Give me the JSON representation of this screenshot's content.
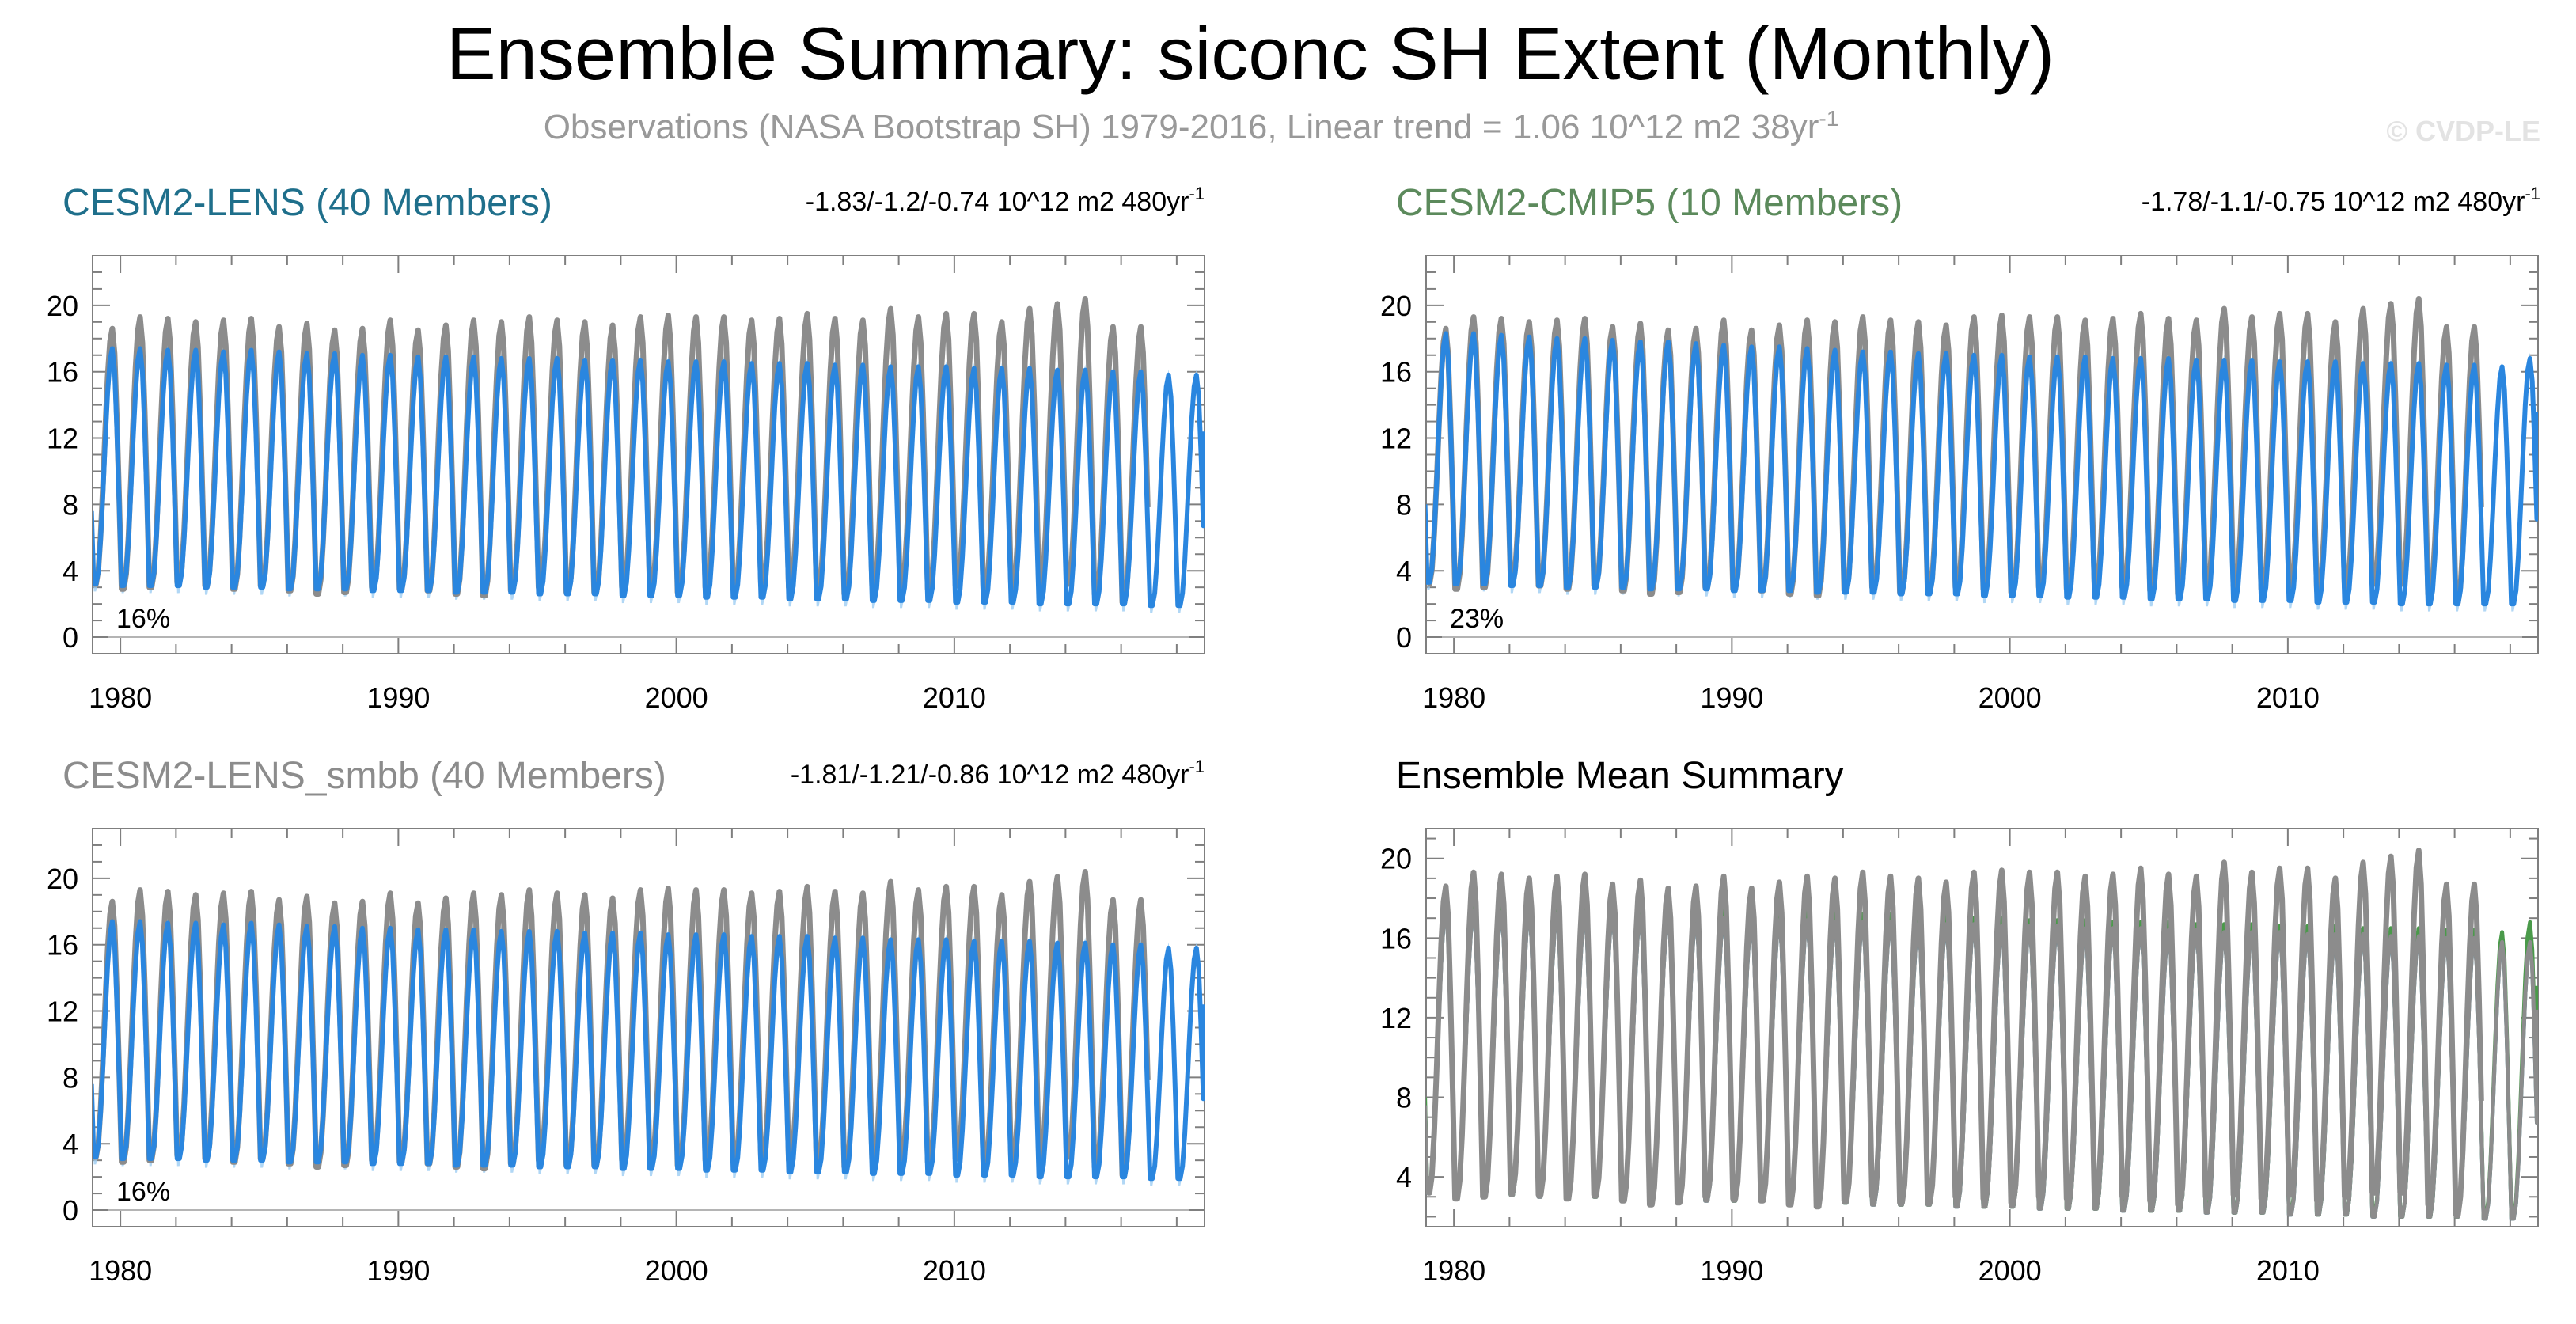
{
  "title": "Ensemble Summary: siconc SH Extent (Monthly)",
  "subtitle": {
    "text": "Observations (NASA Bootstrap SH) 1979-2016, Linear trend = 1.06 10^12 m2 38yr",
    "superscript": "-1"
  },
  "watermark": "© CVDP-LE",
  "colors": {
    "observations": "#8c8c8c",
    "ensemble_line": "#2a86df",
    "ensemble_spread": "#9dcdf2",
    "cesm2_lens_title": "#1f6f8b",
    "cesm2_cmip5_title": "#5c8a5c",
    "cesm2_lens_smbb_title": "#8c8c8c",
    "summary_title": "#000000",
    "summary_cesm2_lens": "#1f6f8b",
    "summary_cesm2_cmip5": "#4a9a4a",
    "summary_cesm2_lens_smbb": "#8c8c8c",
    "frame": "#7f7f7f",
    "zero_line": "#b4b4b4"
  },
  "panels": [
    {
      "id": "cesm2-lens",
      "title": "CESM2-LENS (40 Members)",
      "title_color": "#1f6f8b",
      "stat": "-1.83/-1.2/-0.74 10^12 m2 480yr",
      "stat_sup": "-1",
      "percent": "16%",
      "series": [
        "observations",
        "ensemble"
      ]
    },
    {
      "id": "cesm2-cmip5",
      "title": "CESM2-CMIP5 (10 Members)",
      "title_color": "#5c8a5c",
      "stat": "-1.78/-1.1/-0.75 10^12 m2 480yr",
      "stat_sup": "-1",
      "percent": "23%",
      "series": [
        "observations",
        "ensemble"
      ]
    },
    {
      "id": "cesm2-lens-smbb",
      "title": "CESM2-LENS_smbb (40 Members)",
      "title_color": "#8c8c8c",
      "stat": "-1.81/-1.21/-0.86 10^12 m2 480yr",
      "stat_sup": "-1",
      "percent": "16%",
      "series": [
        "observations",
        "ensemble"
      ]
    },
    {
      "id": "ensemble-mean-summary",
      "title": "Ensemble Mean Summary",
      "title_color": "#000000",
      "stat": "",
      "stat_sup": "",
      "percent": "",
      "series": [
        "ensemble_means",
        "observations"
      ]
    }
  ],
  "chart_data": {
    "type": "line",
    "title": "Ensemble Summary: siconc SH Extent (Monthly)",
    "xlabel": "",
    "ylabel": "",
    "units": "10^12 m2",
    "x_ticks": [
      1980,
      1990,
      2000,
      2010
    ],
    "xlim": [
      1979,
      2019
    ],
    "ylim": [
      -1,
      23
    ],
    "y_ticks_full": [
      0,
      4,
      8,
      12,
      16,
      20
    ],
    "ylim_summary": [
      1.5,
      21.5
    ],
    "y_ticks_summary": [
      4,
      8,
      12,
      16,
      20
    ],
    "observations": {
      "name": "Observations (NASA Bootstrap SH)",
      "years": [
        1979,
        1980,
        1981,
        1982,
        1983,
        1984,
        1985,
        1986,
        1987,
        1988,
        1989,
        1990,
        1991,
        1992,
        1993,
        1994,
        1995,
        1996,
        1997,
        1998,
        1999,
        2000,
        2001,
        2002,
        2003,
        2004,
        2005,
        2006,
        2007,
        2008,
        2009,
        2010,
        2011,
        2012,
        2013,
        2014,
        2015,
        2016
      ],
      "annual_max": [
        18.6,
        19.3,
        19.2,
        19.0,
        19.1,
        19.2,
        18.7,
        18.9,
        18.5,
        18.6,
        19.1,
        18.5,
        18.8,
        19.1,
        19.0,
        19.3,
        19.1,
        19.0,
        18.8,
        19.3,
        19.4,
        19.3,
        19.3,
        19.1,
        19.2,
        19.5,
        19.2,
        19.1,
        19.8,
        19.3,
        19.5,
        19.5,
        19.0,
        19.8,
        20.1,
        20.4,
        18.7,
        18.7
      ],
      "annual_min": [
        3.2,
        2.9,
        3.0,
        3.3,
        3.1,
        2.9,
        3.1,
        2.8,
        2.6,
        2.7,
        3.0,
        2.9,
        2.8,
        2.6,
        2.5,
        2.8,
        3.0,
        2.7,
        2.7,
        3.0,
        2.9,
        2.7,
        3.0,
        2.9,
        3.1,
        3.0,
        2.8,
        2.6,
        3.0,
        3.1,
        2.9,
        3.1,
        2.8,
        3.0,
        3.2,
        3.2,
        2.6,
        2.1
      ]
    },
    "ensembles": [
      {
        "name": "CESM2-LENS (40 Members)",
        "start_value": 7.6,
        "annual_max": [
          17.4,
          17.4,
          17.3,
          17.3,
          17.2,
          17.3,
          17.2,
          17.1,
          17.1,
          17.0,
          17.0,
          16.9,
          16.9,
          16.9,
          16.8,
          16.8,
          16.8,
          16.7,
          16.7,
          16.7,
          16.6,
          16.6,
          16.6,
          16.5,
          16.5,
          16.5,
          16.4,
          16.4,
          16.3,
          16.3,
          16.3,
          16.2,
          16.2,
          16.2,
          16.1,
          16.1,
          16.0,
          16.0,
          15.8,
          15.8
        ],
        "annual_min": [
          3.2,
          3.1,
          3.1,
          3.1,
          3.0,
          3.0,
          3.0,
          2.9,
          2.9,
          2.9,
          2.8,
          2.8,
          2.8,
          2.7,
          2.7,
          2.7,
          2.6,
          2.6,
          2.6,
          2.5,
          2.5,
          2.5,
          2.4,
          2.4,
          2.4,
          2.3,
          2.3,
          2.3,
          2.2,
          2.2,
          2.2,
          2.1,
          2.1,
          2.1,
          2.0,
          2.0,
          2.0,
          2.0,
          1.9,
          1.9
        ],
        "end_value": 12.4
      },
      {
        "name": "CESM2-CMIP5 (10 Members)",
        "start_value": 8.0,
        "annual_max": [
          18.3,
          18.3,
          18.2,
          18.1,
          18.0,
          18.0,
          17.9,
          17.8,
          17.8,
          17.7,
          17.6,
          17.5,
          17.5,
          17.4,
          17.3,
          17.2,
          17.2,
          17.1,
          17.1,
          17.0,
          17.0,
          16.9,
          16.9,
          16.9,
          16.8,
          16.8,
          16.8,
          16.7,
          16.7,
          16.7,
          16.6,
          16.6,
          16.6,
          16.5,
          16.5,
          16.5,
          16.4,
          16.4,
          16.3,
          16.8
        ],
        "annual_min": [
          3.3,
          3.2,
          3.2,
          3.1,
          3.1,
          3.0,
          3.0,
          3.0,
          2.9,
          2.9,
          2.9,
          2.8,
          2.8,
          2.8,
          2.7,
          2.7,
          2.7,
          2.6,
          2.6,
          2.6,
          2.5,
          2.5,
          2.5,
          2.4,
          2.4,
          2.4,
          2.3,
          2.3,
          2.3,
          2.2,
          2.2,
          2.2,
          2.1,
          2.1,
          2.1,
          2.0,
          2.0,
          2.0,
          2.0,
          2.0
        ],
        "end_value": 13.6
      },
      {
        "name": "CESM2-LENS_smbb (40 Members)",
        "start_value": 7.6,
        "annual_max": [
          17.4,
          17.4,
          17.3,
          17.3,
          17.2,
          17.3,
          17.2,
          17.1,
          17.1,
          17.0,
          17.0,
          16.9,
          16.9,
          16.9,
          16.8,
          16.8,
          16.8,
          16.7,
          16.7,
          16.7,
          16.6,
          16.6,
          16.6,
          16.5,
          16.5,
          16.5,
          16.4,
          16.4,
          16.3,
          16.3,
          16.3,
          16.2,
          16.2,
          16.2,
          16.1,
          16.1,
          16.0,
          16.0,
          15.8,
          15.8
        ],
        "annual_min": [
          3.2,
          3.1,
          3.1,
          3.1,
          3.0,
          3.0,
          3.0,
          2.9,
          2.9,
          2.9,
          2.8,
          2.8,
          2.8,
          2.7,
          2.7,
          2.7,
          2.6,
          2.6,
          2.6,
          2.5,
          2.5,
          2.5,
          2.4,
          2.4,
          2.4,
          2.3,
          2.3,
          2.3,
          2.2,
          2.2,
          2.2,
          2.1,
          2.1,
          2.1,
          2.0,
          2.0,
          2.0,
          2.0,
          1.9,
          1.9
        ],
        "end_value": 12.4
      }
    ]
  }
}
